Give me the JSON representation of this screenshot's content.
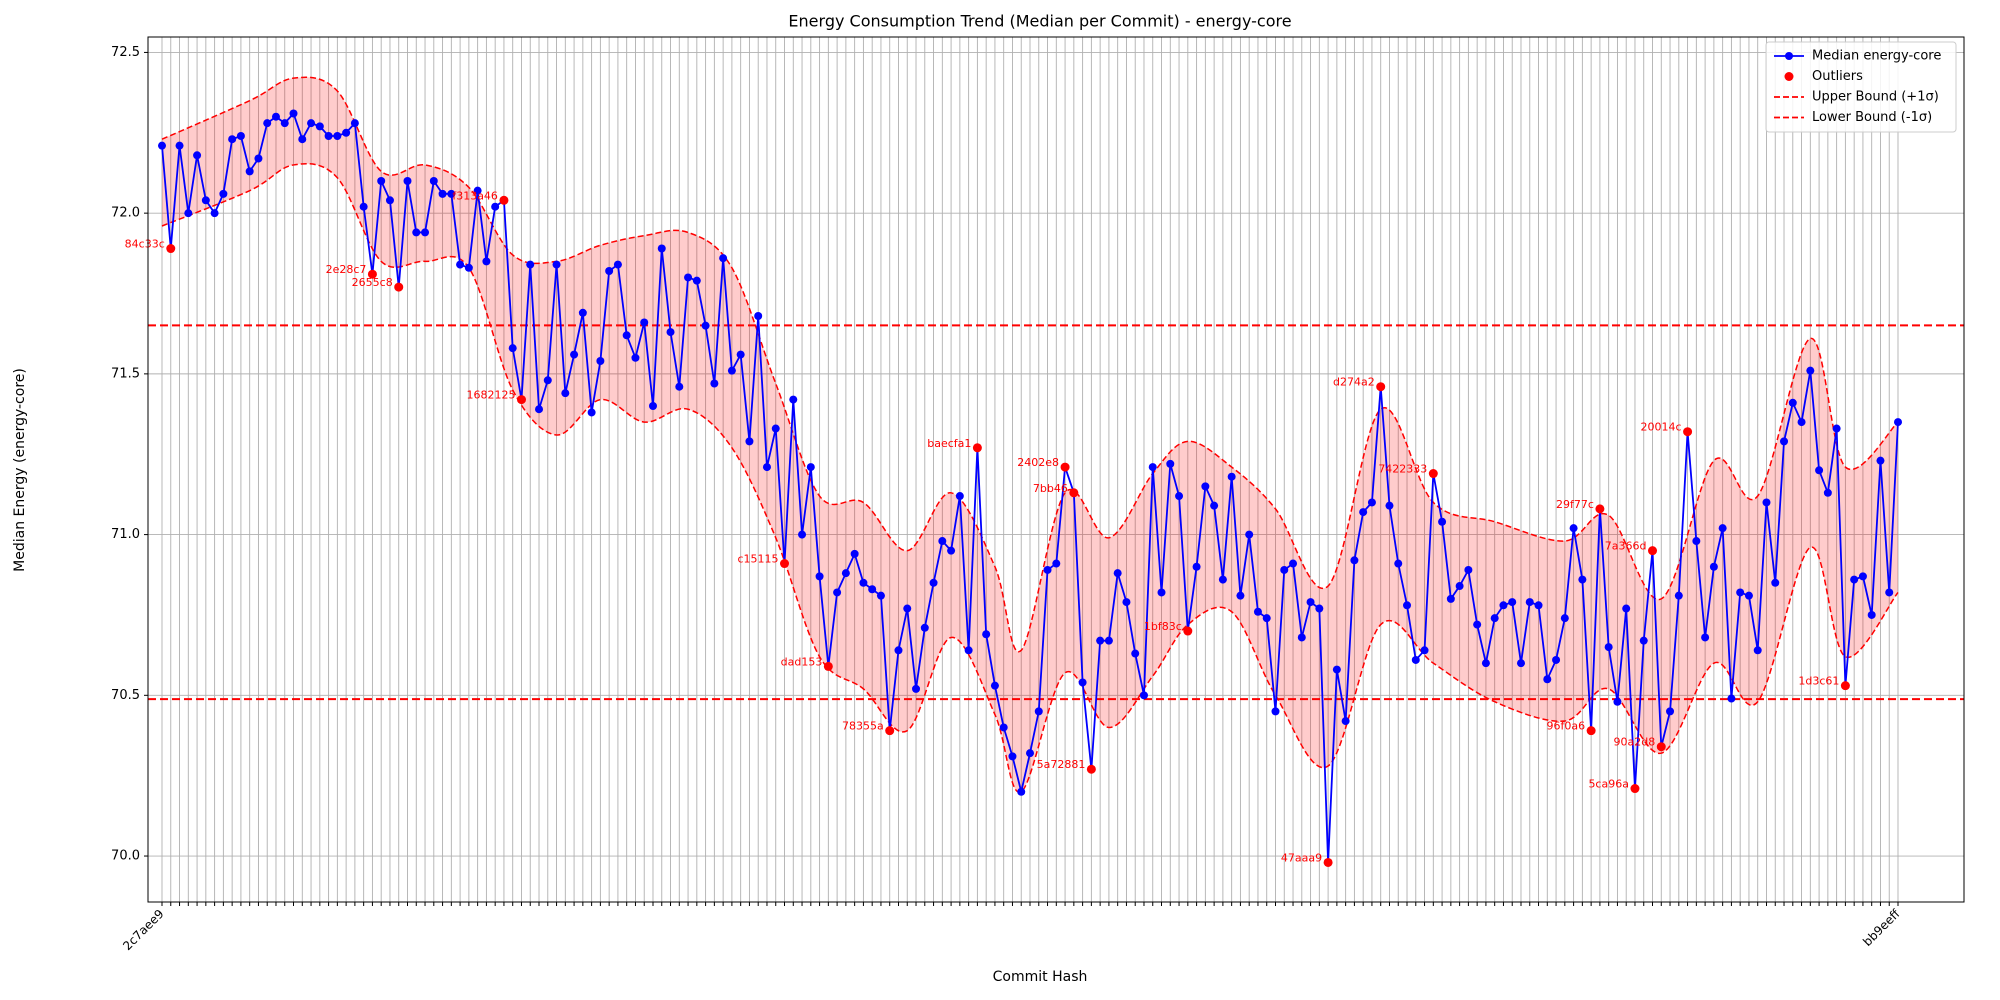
{
  "chart_data": {
    "type": "line",
    "title": "Energy Consumption Trend (Median per Commit) - energy-core",
    "xlabel": "Commit Hash",
    "ylabel": "Median Energy (energy-core)",
    "ylim": [
      69.857,
      72.548
    ],
    "yticks": [
      {
        "value": 70,
        "label": "70.0"
      },
      70.5,
      {
        "value": 71,
        "label": "71.0"
      },
      71.5,
      {
        "value": 72,
        "label": "72.0"
      },
      72.5
    ],
    "grid": true,
    "legend": "upper right",
    "categories": [
      "2c7aee9",
      null,
      null,
      null,
      null,
      null,
      null,
      null,
      null,
      null,
      null,
      null,
      null,
      null,
      null,
      null,
      null,
      null,
      null,
      null,
      null,
      null,
      null,
      null,
      null,
      null,
      null,
      null,
      null,
      null,
      null,
      null,
      null,
      null,
      null,
      null,
      null,
      null,
      null,
      null,
      null,
      null,
      null,
      null,
      null,
      null,
      null,
      null,
      null,
      null,
      null,
      null,
      null,
      null,
      null,
      null,
      null,
      null,
      null,
      null,
      null,
      null,
      null,
      null,
      null,
      null,
      null,
      null,
      null,
      null,
      null,
      null,
      null,
      null,
      null,
      null,
      null,
      null,
      null,
      null,
      null,
      null,
      null,
      null,
      null,
      null,
      null,
      null,
      null,
      null,
      null,
      null,
      null,
      null,
      null,
      null,
      null,
      null,
      null,
      null,
      null,
      null,
      null,
      null,
      null,
      null,
      null,
      null,
      null,
      null,
      null,
      null,
      null,
      null,
      null,
      null,
      null,
      null,
      null,
      null,
      null,
      null,
      null,
      null,
      null,
      null,
      null,
      null,
      null,
      null,
      null,
      null,
      null,
      null,
      null,
      null,
      null,
      null,
      null,
      null,
      null,
      null,
      null,
      null,
      null,
      null,
      null,
      null,
      null,
      null,
      null,
      null,
      null,
      null,
      null,
      null,
      null,
      null,
      null,
      null,
      null,
      null,
      null,
      null,
      null,
      null,
      null,
      null,
      null,
      null,
      null,
      null,
      null,
      null,
      null,
      null,
      null,
      null,
      null,
      null,
      null,
      null,
      null,
      null,
      null,
      null,
      null,
      null,
      null,
      null,
      null,
      null,
      null,
      null,
      null,
      null,
      null,
      null,
      "bb9eeff"
    ],
    "series": [
      {
        "name": "Median energy-core",
        "color": "#0000ff",
        "values": [
          72.21,
          71.89,
          72.21,
          72.0,
          72.18,
          72.04,
          72.0,
          72.06,
          72.23,
          72.24,
          72.13,
          72.17,
          72.28,
          72.3,
          72.28,
          72.31,
          72.23,
          72.28,
          72.27,
          72.24,
          72.24,
          72.25,
          72.28,
          72.02,
          71.81,
          72.1,
          72.04,
          71.77,
          72.1,
          71.94,
          71.94,
          72.1,
          72.06,
          72.06,
          71.84,
          71.83,
          72.07,
          71.85,
          72.02,
          72.04,
          71.58,
          71.42,
          71.84,
          71.39,
          71.48,
          71.84,
          71.44,
          71.56,
          71.69,
          71.38,
          71.54,
          71.82,
          71.84,
          71.62,
          71.55,
          71.66,
          71.4,
          71.89,
          71.63,
          71.46,
          71.8,
          71.79,
          71.65,
          71.47,
          71.86,
          71.51,
          71.56,
          71.29,
          71.68,
          71.21,
          71.33,
          70.91,
          71.42,
          71.0,
          71.21,
          70.87,
          70.59,
          70.82,
          70.88,
          70.94,
          70.85,
          70.83,
          70.81,
          70.39,
          70.64,
          70.77,
          70.52,
          70.71,
          70.85,
          70.98,
          70.95,
          71.12,
          70.64,
          71.27,
          70.69,
          70.53,
          70.4,
          70.31,
          70.2,
          70.32,
          70.45,
          70.89,
          70.91,
          71.21,
          71.13,
          70.54,
          70.27,
          70.67,
          70.67,
          70.88,
          70.79,
          70.63,
          70.5,
          71.21,
          70.82,
          71.22,
          71.12,
          70.7,
          70.9,
          71.15,
          71.09,
          70.86,
          71.18,
          70.81,
          71.0,
          70.76,
          70.74,
          70.45,
          70.89,
          70.91,
          70.68,
          70.79,
          70.77,
          69.98,
          70.58,
          70.42,
          70.92,
          71.07,
          71.1,
          71.46,
          71.09,
          70.91,
          70.78,
          70.61,
          70.64,
          71.19,
          71.04,
          70.8,
          70.84,
          70.89,
          70.72,
          70.6,
          70.74,
          70.78,
          70.79,
          70.6,
          70.79,
          70.78,
          70.55,
          70.61,
          70.74,
          71.02,
          70.86,
          70.39,
          71.08,
          70.65,
          70.48,
          70.77,
          70.21,
          70.67,
          70.95,
          70.34,
          70.45,
          70.81,
          71.32,
          70.98,
          70.68,
          70.9,
          71.02,
          70.49,
          70.82,
          70.81,
          70.64,
          71.1,
          70.85,
          71.29,
          71.41,
          71.35,
          71.51,
          71.2,
          71.13,
          71.33,
          70.53,
          70.86,
          70.87,
          70.75,
          71.23,
          70.82,
          71.35
        ]
      }
    ],
    "outliers": {
      "name": "Outliers",
      "color": "#ff0000",
      "points": [
        {
          "index": 1,
          "value": 71.89,
          "label": "84c33c"
        },
        {
          "index": 24,
          "value": 71.81,
          "label": "2e28c7"
        },
        {
          "index": 27,
          "value": 71.77,
          "label": "2655c8"
        },
        {
          "index": 39,
          "value": 72.04,
          "label": "f313a46"
        },
        {
          "index": 41,
          "value": 71.42,
          "label": "1682125"
        },
        {
          "index": 71,
          "value": 70.91,
          "label": "c15115"
        },
        {
          "index": 76,
          "value": 70.59,
          "label": "dad153"
        },
        {
          "index": 83,
          "value": 70.39,
          "label": "78355a"
        },
        {
          "index": 93,
          "value": 71.27,
          "label": "baecfa1"
        },
        {
          "index": 103,
          "value": 71.21,
          "label": "2402e8"
        },
        {
          "index": 104,
          "value": 71.13,
          "label": "7bb46"
        },
        {
          "index": 106,
          "value": 70.27,
          "label": "5a72881"
        },
        {
          "index": 117,
          "value": 70.7,
          "label": "1bf83c"
        },
        {
          "index": 133,
          "value": 69.98,
          "label": "47aaa9"
        },
        {
          "index": 139,
          "value": 71.46,
          "label": "d274a2"
        },
        {
          "index": 145,
          "value": 71.19,
          "label": "7422333"
        },
        {
          "index": 163,
          "value": 70.39,
          "label": "96f0a6"
        },
        {
          "index": 164,
          "value": 71.08,
          "label": "29f77c"
        },
        {
          "index": 168,
          "value": 70.21,
          "label": "5ca96a"
        },
        {
          "index": 170,
          "value": 70.95,
          "label": "7a366d"
        },
        {
          "index": 171,
          "value": 70.34,
          "label": "90a2d8"
        },
        {
          "index": 174,
          "value": 71.32,
          "label": "20014c"
        },
        {
          "index": 192,
          "value": 70.53,
          "label": "1d3c61"
        }
      ]
    },
    "band": {
      "color": "#ff0000",
      "x": [
        0,
        10,
        15,
        20,
        25,
        30,
        35,
        40,
        45,
        50,
        55,
        60,
        65,
        70,
        75,
        80,
        85,
        90,
        95,
        98,
        103,
        108,
        113,
        117,
        122,
        127,
        133,
        139,
        145,
        152,
        160,
        165,
        171,
        177,
        182,
        188,
        192,
        198
      ],
      "upper": [
        72.23,
        72.35,
        72.42,
        72.38,
        72.13,
        72.15,
        72.08,
        71.87,
        71.85,
        71.9,
        71.93,
        71.94,
        71.83,
        71.47,
        71.12,
        71.1,
        70.95,
        71.13,
        70.9,
        70.64,
        71.13,
        70.99,
        71.19,
        71.29,
        71.21,
        71.08,
        70.84,
        71.39,
        71.1,
        71.04,
        70.98,
        71.06,
        70.8,
        71.23,
        71.12,
        71.61,
        71.21,
        71.35
      ],
      "lower": [
        71.96,
        72.07,
        72.15,
        72.11,
        71.85,
        71.85,
        71.83,
        71.45,
        71.31,
        71.42,
        71.35,
        71.39,
        71.27,
        70.99,
        70.62,
        70.52,
        70.39,
        70.68,
        70.44,
        70.2,
        70.57,
        70.4,
        70.56,
        70.72,
        70.76,
        70.5,
        70.28,
        70.72,
        70.6,
        70.48,
        70.42,
        70.52,
        70.32,
        70.6,
        70.48,
        70.96,
        70.62,
        70.82
      ]
    },
    "hlines": [
      {
        "name": "Upper Bound (+1σ)",
        "value": 71.651,
        "color": "#ff0000"
      },
      {
        "name": "Lower Bound (-1σ)",
        "value": 70.488,
        "color": "#ff0000"
      }
    ]
  }
}
